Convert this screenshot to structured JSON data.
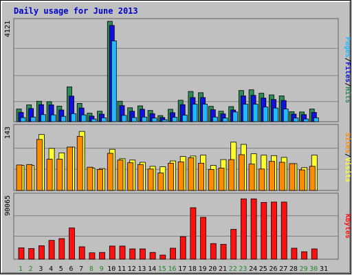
{
  "chart_data": {
    "type": "bar",
    "title": "Daily usage for June 2013",
    "categories": [
      "1",
      "2",
      "3",
      "4",
      "5",
      "6",
      "7",
      "8",
      "9",
      "10",
      "11",
      "12",
      "13",
      "14",
      "15",
      "16",
      "17",
      "18",
      "19",
      "20",
      "21",
      "22",
      "23",
      "24",
      "25",
      "26",
      "27",
      "28",
      "29",
      "30",
      "31"
    ],
    "weekend_days": [
      "1",
      "2",
      "8",
      "9",
      "15",
      "16",
      "22",
      "23",
      "29",
      "30"
    ],
    "colors": {
      "title": "#0000cc",
      "weekday": "#000000",
      "weekend": "#228822",
      "hits": "#2e8b57",
      "files": "#1010e0",
      "pages": "#20b8ff",
      "visits": "#ffff30",
      "sites": "#ff8c00",
      "kbytes": "#ff1010",
      "panel": "#c0c0c0",
      "frame": "#e0e0e0"
    },
    "panels": [
      {
        "id": "hits-files-pages",
        "ymax_label": "4121",
        "ylim": [
          0,
          4121
        ],
        "series": [
          {
            "name": "Hits",
            "values": [
              520,
              690,
              840,
              820,
              640,
              1430,
              750,
              350,
              430,
              4121,
              840,
              570,
              650,
              460,
              250,
              510,
              880,
              1240,
              1190,
              630,
              430,
              620,
              1280,
              1310,
              1170,
              1100,
              1060,
              410,
              400,
              520,
              0
            ]
          },
          {
            "name": "Files",
            "values": [
              380,
              540,
              700,
              690,
              480,
              1050,
              560,
              230,
              310,
              3950,
              660,
              430,
              510,
              330,
              170,
              370,
              700,
              990,
              990,
              490,
              320,
              480,
              1060,
              1080,
              970,
              910,
              870,
              310,
              290,
              380,
              0
            ]
          },
          {
            "name": "Pages",
            "values": [
              170,
              190,
              290,
              280,
              220,
              330,
              280,
              110,
              160,
              3320,
              260,
              170,
              190,
              150,
              80,
              180,
              270,
              720,
              720,
              190,
              150,
              400,
              720,
              720,
              600,
              560,
              520,
              150,
              110,
              160,
              0
            ]
          }
        ]
      },
      {
        "id": "visits-sites",
        "ymax_label": "143",
        "ylim": [
          0,
          143
        ],
        "series": [
          {
            "name": "Visits",
            "values": [
              56,
              56,
              125,
              94,
              84,
              97,
              132,
              50,
              49,
              92,
              71,
              68,
              63,
              54,
              53,
              66,
              76,
              77,
              79,
              56,
              69,
              108,
              103,
              82,
              79,
              78,
              74,
              60,
              51,
              79,
              0
            ]
          },
          {
            "name": "Sites",
            "values": [
              57,
              58,
              114,
              70,
              70,
              97,
              121,
              52,
              47,
              83,
              68,
              62,
              58,
              48,
              39,
              61,
              64,
              73,
              61,
              47,
              50,
              69,
              80,
              59,
              48,
              65,
              63,
              60,
              46,
              54,
              0
            ]
          }
        ]
      },
      {
        "id": "kbytes",
        "ymax_label": "90065",
        "ylim": [
          0,
          90065
        ],
        "series": [
          {
            "name": "KBytes",
            "values": [
              16000,
              15000,
              19000,
              26500,
              29000,
              44000,
              17500,
              9000,
              9500,
              18500,
              18500,
              14500,
              14500,
              9500,
              5800,
              15500,
              31800,
              72500,
              59000,
              22000,
              21000,
              42000,
              85000,
              85000,
              80000,
              80500,
              80500,
              15500,
              10500,
              14500,
              0
            ]
          }
        ]
      }
    ],
    "right_labels": {
      "top": [
        {
          "text": "Pages",
          "key": "pages"
        },
        {
          "text": "/",
          "key": "weekday"
        },
        {
          "text": "Files",
          "key": "files"
        },
        {
          "text": "/",
          "key": "weekday"
        },
        {
          "text": "Hits",
          "key": "hits"
        }
      ],
      "middle": [
        {
          "text": "Sites",
          "key": "sites"
        },
        {
          "text": "/",
          "key": "weekday"
        },
        {
          "text": "Visits",
          "key": "visits"
        }
      ],
      "bottom": [
        {
          "text": "KBytes",
          "key": "kbytes"
        }
      ]
    }
  }
}
